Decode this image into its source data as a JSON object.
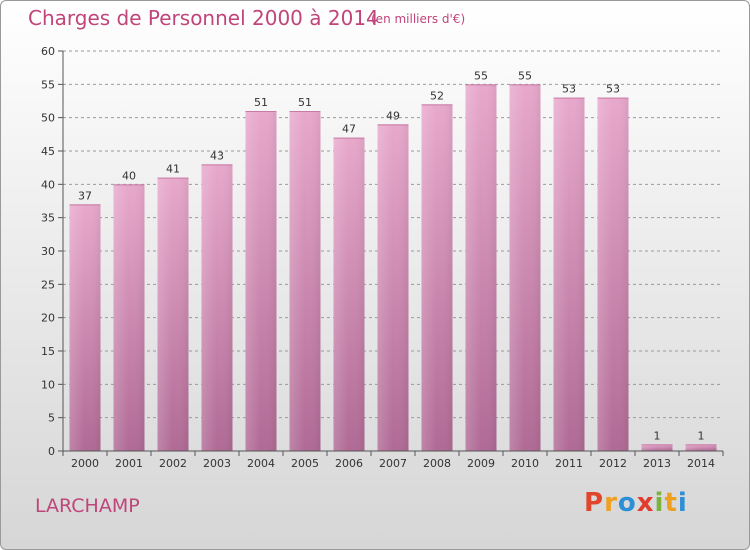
{
  "header": {
    "title": "Charges de Personnel 2000 à 2014",
    "subtitle": "(en milliers d'€)"
  },
  "footer": {
    "place": "LARCHAMP",
    "logo_letters": [
      "P",
      "r",
      "o",
      "x",
      "i",
      "t",
      "i"
    ],
    "logo_colors": [
      "#e0462c",
      "#f0a020",
      "#2d8fd6",
      "#e03c2e",
      "#7ab33d",
      "#f0a020",
      "#2d8fd6"
    ]
  },
  "chart_data": {
    "type": "bar",
    "title": "Charges de Personnel 2000 à 2014",
    "subtitle": "(en milliers d'€)",
    "categories": [
      "2000",
      "2001",
      "2002",
      "2003",
      "2004",
      "2005",
      "2006",
      "2007",
      "2008",
      "2009",
      "2010",
      "2011",
      "2012",
      "2013",
      "2014"
    ],
    "values": [
      37,
      40,
      41,
      43,
      51,
      51,
      47,
      49,
      52,
      55,
      55,
      53,
      53,
      1,
      1
    ],
    "ylim": [
      0,
      60
    ],
    "yticks": [
      0,
      5,
      10,
      15,
      20,
      25,
      30,
      35,
      40,
      45,
      50,
      55,
      60
    ],
    "grid": true,
    "bar_color": "#d98cb5"
  }
}
